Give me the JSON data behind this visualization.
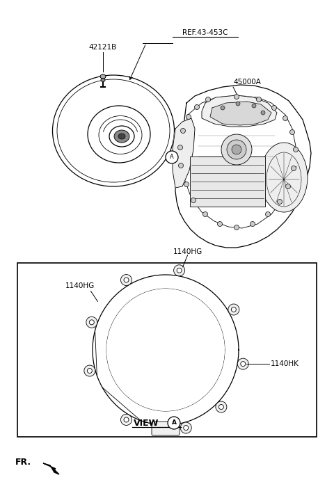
{
  "bg_color": "#ffffff",
  "fig_width": 4.8,
  "fig_height": 7.03,
  "dpi": 100,
  "labels": {
    "ref_label": "REF.43-453C",
    "part_42121B": "42121B",
    "part_45000A": "45000A",
    "part_1140HG_left": "1140HG",
    "part_1140HG_top": "1140HG",
    "part_1140HK": "1140HK",
    "view_label": "VIEW",
    "view_circle": "A",
    "circle_A": "A",
    "fr_label": "FR."
  }
}
